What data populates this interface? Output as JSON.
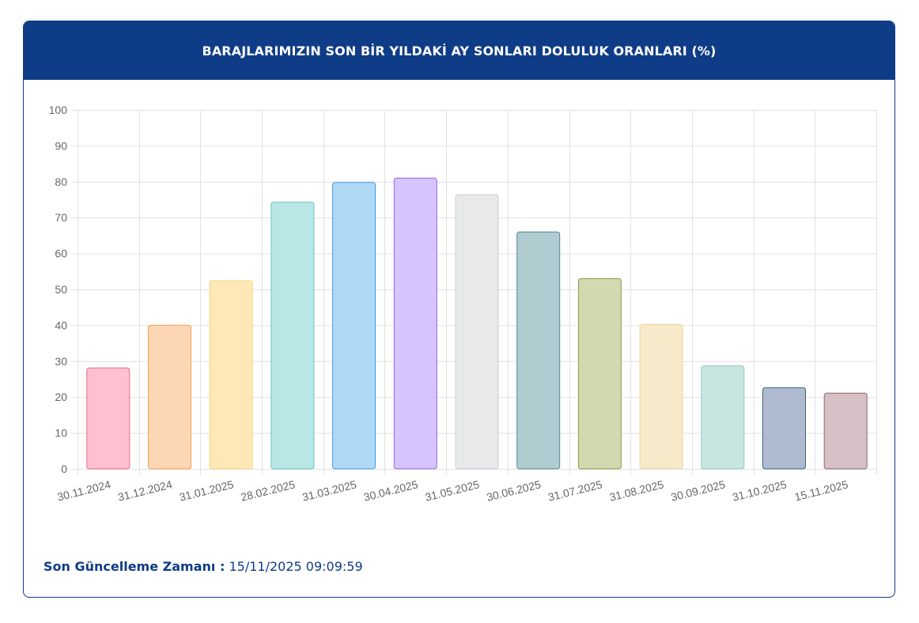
{
  "header": {
    "title": "BARAJLARIMIZIN SON BİR YILDAKİ AY SONLARI DOLULUK ORANLARI (%)"
  },
  "footer": {
    "label": "Son Güncelleme Zamanı :",
    "value": "15/11/2025 09:09:59"
  },
  "chart_data": {
    "type": "bar",
    "title": "BARAJLARIMIZIN SON BİR YILDAKİ AY SONLARI DOLULUK ORANLARI (%)",
    "xlabel": "",
    "ylabel": "",
    "ylim": [
      0,
      100
    ],
    "yticks": [
      0,
      10,
      20,
      30,
      40,
      50,
      60,
      70,
      80,
      90,
      100
    ],
    "grid": true,
    "legend": "none",
    "categories": [
      "30.11.2024",
      "31.12.2024",
      "31.01.2025",
      "28.02.2025",
      "31.03.2025",
      "30.04.2025",
      "31.05.2025",
      "30.06.2025",
      "31.07.2025",
      "31.08.2025",
      "30.09.2025",
      "31.10.2025",
      "15.11.2025"
    ],
    "values": [
      28.1,
      40.0,
      52.4,
      74.3,
      79.8,
      81.0,
      76.4,
      66.0,
      53.0,
      40.2,
      28.7,
      22.6,
      21.1
    ],
    "fill_colors": [
      "#ffc0d0",
      "#fdd6b3",
      "#ffe8b8",
      "#b8e7e6",
      "#b0d9f6",
      "#d6c4fe",
      "#e8e9eb",
      "#b1ccd0",
      "#d4d8b0",
      "#f7eaca",
      "#c9e5e0",
      "#afbccf",
      "#d6c0c5"
    ],
    "border_colors": [
      "#e86a87",
      "#f0a05a",
      "#f5d37f",
      "#62c6c2",
      "#3c9be0",
      "#9567e0",
      "#cbcdd1",
      "#4e8a93",
      "#8f9a45",
      "#ecd69a",
      "#8fc9bd",
      "#3d5f86",
      "#8e6470"
    ]
  }
}
